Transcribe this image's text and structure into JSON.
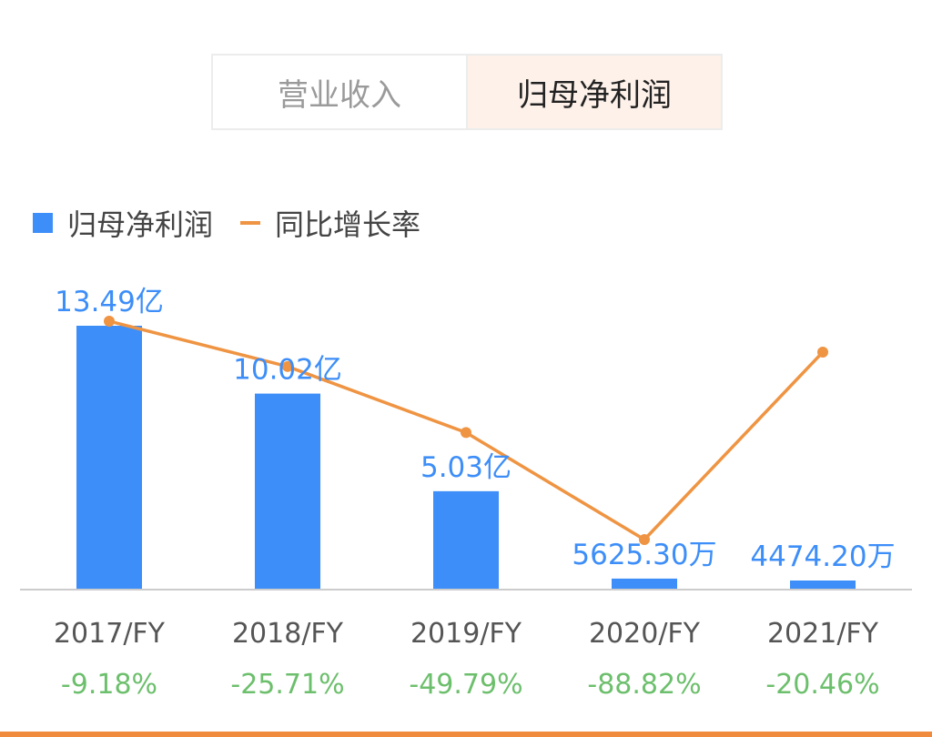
{
  "tabs": [
    {
      "label": "营业收入",
      "active": false
    },
    {
      "label": "归母净利润",
      "active": true
    }
  ],
  "colors": {
    "bar": "#3d8ef8",
    "line": "#ef9442",
    "bar_label": "#3d8ef8",
    "growth_label": "#6cbf6c",
    "axis_label": "#555555",
    "axis_line": "#cccccc"
  },
  "chart_data": {
    "type": "bar",
    "categories": [
      "2017/FY",
      "2018/FY",
      "2019/FY",
      "2020/FY",
      "2021/FY"
    ],
    "series": [
      {
        "name": "归母净利润",
        "type": "bar",
        "unit": "亿",
        "values": [
          13.49,
          10.02,
          5.03,
          0.56253,
          0.44742
        ],
        "labels": [
          "13.49亿",
          "10.02亿",
          "5.03亿",
          "5625.30万",
          "4474.20万"
        ]
      },
      {
        "name": "同比增长率",
        "type": "line",
        "unit": "%",
        "values": [
          -9.18,
          -25.71,
          -49.79,
          -88.82,
          -20.46
        ],
        "labels": [
          "-9.18%",
          "-25.71%",
          "-49.79%",
          "-88.82%",
          "-20.46%"
        ]
      }
    ],
    "legend": [
      "归母净利润",
      "同比增长率"
    ],
    "legend_position": "top-left",
    "grid": false
  }
}
